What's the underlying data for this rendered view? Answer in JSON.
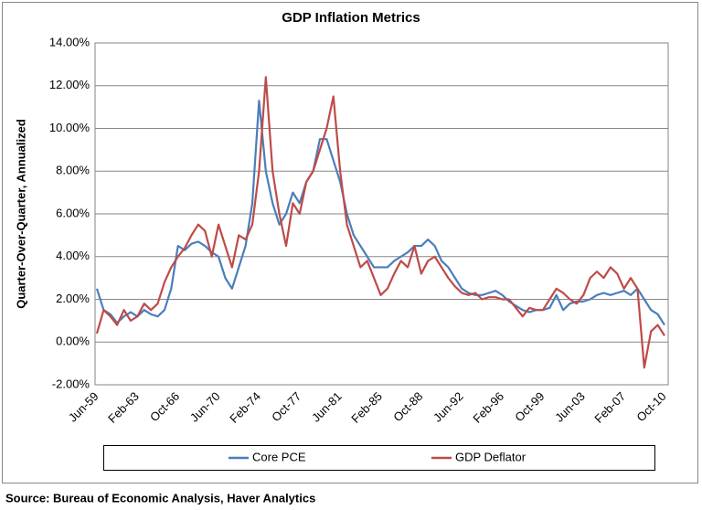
{
  "chart_data": {
    "type": "line",
    "title": "GDP Inflation Metrics",
    "y_label": "Quarter-Over-Quarter, Annualized",
    "source": "Source:  Bureau of Economic Analysis, Haver Analytics",
    "categories": [
      "Jun-59",
      null,
      null,
      null,
      null,
      null,
      "Feb-63",
      null,
      null,
      null,
      null,
      null,
      "Oct-66",
      null,
      null,
      null,
      null,
      null,
      "Jun-70",
      null,
      null,
      null,
      null,
      null,
      "Feb-74",
      null,
      null,
      null,
      null,
      null,
      "Oct-77",
      null,
      null,
      null,
      null,
      null,
      "Jun-81",
      null,
      null,
      null,
      null,
      null,
      "Feb-85",
      null,
      null,
      null,
      null,
      null,
      "Oct-88",
      null,
      null,
      null,
      null,
      null,
      "Jun-92",
      null,
      null,
      null,
      null,
      null,
      "Feb-96",
      null,
      null,
      null,
      null,
      null,
      "Oct-99",
      null,
      null,
      null,
      null,
      null,
      "Jun-03",
      null,
      null,
      null,
      null,
      null,
      "Feb-07",
      null,
      null,
      null,
      null,
      null,
      "Oct-10"
    ],
    "series": [
      {
        "name": "Core PCE",
        "color": "#4a7ebb",
        "values": [
          2.5,
          1.5,
          1.3,
          0.9,
          1.2,
          1.4,
          1.2,
          1.5,
          1.3,
          1.2,
          1.5,
          2.5,
          4.5,
          4.3,
          4.6,
          4.7,
          4.5,
          4.2,
          4.0,
          3.0,
          2.5,
          3.5,
          4.5,
          6.5,
          11.3,
          8.0,
          6.5,
          5.5,
          6.0,
          7.0,
          6.5,
          7.5,
          8.0,
          9.5,
          9.5,
          8.5,
          7.5,
          6.0,
          5.0,
          4.5,
          4.0,
          3.5,
          3.5,
          3.5,
          3.8,
          4.0,
          4.2,
          4.5,
          4.5,
          4.8,
          4.5,
          3.8,
          3.5,
          3.0,
          2.5,
          2.3,
          2.2,
          2.2,
          2.3,
          2.4,
          2.2,
          1.9,
          1.7,
          1.5,
          1.4,
          1.5,
          1.5,
          1.6,
          2.2,
          1.5,
          1.8,
          1.9,
          1.9,
          2.0,
          2.2,
          2.3,
          2.2,
          2.3,
          2.4,
          2.2,
          2.5,
          2.0,
          1.5,
          1.3,
          0.8
        ]
      },
      {
        "name": "GDP Deflator",
        "color": "#be4b48",
        "values": [
          0.4,
          1.5,
          1.2,
          0.8,
          1.5,
          1.0,
          1.2,
          1.8,
          1.5,
          1.8,
          2.8,
          3.5,
          4.0,
          4.4,
          5.0,
          5.5,
          5.2,
          4.0,
          5.5,
          4.5,
          3.5,
          5.0,
          4.8,
          5.5,
          8.0,
          12.4,
          8.0,
          6.0,
          4.5,
          6.5,
          6.0,
          7.5,
          8.0,
          9.0,
          10.0,
          11.5,
          8.0,
          5.5,
          4.5,
          3.5,
          3.8,
          3.0,
          2.2,
          2.5,
          3.2,
          3.8,
          3.5,
          4.5,
          3.2,
          3.8,
          4.0,
          3.5,
          3.0,
          2.6,
          2.3,
          2.2,
          2.3,
          2.0,
          2.1,
          2.1,
          2.0,
          2.0,
          1.6,
          1.2,
          1.6,
          1.5,
          1.5,
          2.0,
          2.5,
          2.3,
          2.0,
          1.8,
          2.2,
          3.0,
          3.3,
          3.0,
          3.5,
          3.2,
          2.5,
          3.0,
          2.5,
          -1.2,
          0.5,
          0.8,
          0.3
        ]
      }
    ],
    "ylim": [
      -2,
      14
    ],
    "yticks": [
      {
        "value": -2,
        "label": "-2.00%"
      },
      {
        "value": 0,
        "label": "0.00%"
      },
      {
        "value": 2,
        "label": "2.00%"
      },
      {
        "value": 4,
        "label": "4.00%"
      },
      {
        "value": 6,
        "label": "6.00%"
      },
      {
        "value": 8,
        "label": "8.00%"
      },
      {
        "value": 10,
        "label": "10.00%"
      },
      {
        "value": 12,
        "label": "12.00%"
      },
      {
        "value": 14,
        "label": "14.00%"
      }
    ],
    "grid": true
  }
}
